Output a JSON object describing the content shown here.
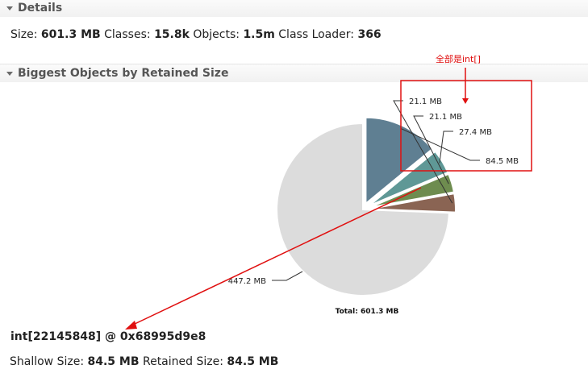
{
  "details": {
    "section_title": "Details",
    "size_label": "Size:",
    "size_value": "601.3 MB",
    "classes_label": "Classes:",
    "classes_value": "15.8k",
    "objects_label": "Objects:",
    "objects_value": "1.5m",
    "loader_label": "Class Loader:",
    "loader_value": "366"
  },
  "biggest": {
    "section_title": "Biggest Objects by Retained Size"
  },
  "chart_data": {
    "type": "pie",
    "title": "",
    "total_label": "Total: 601.3 MB",
    "slices": [
      {
        "label": "84.5 MB",
        "value": 84.5,
        "color": "#5f7f92",
        "exploded": true
      },
      {
        "label": "27.4 MB",
        "value": 27.4,
        "color": "#5f9896",
        "exploded": true
      },
      {
        "label": "21.1 MB",
        "value": 21.1,
        "color": "#6e8c4f",
        "exploded": true
      },
      {
        "label": "21.1 MB",
        "value": 21.1,
        "color": "#8a6453",
        "exploded": true
      },
      {
        "label": "447.2 MB",
        "value": 447.2,
        "color": "#dcdcdc",
        "exploded": false
      }
    ]
  },
  "annotation": {
    "text": "全部是int[]",
    "color": "#e01010"
  },
  "selected_object": {
    "title": "int[22145848] @ 0x68995d9e8",
    "shallow_label": "Shallow Size:",
    "shallow_value": "84.5 MB",
    "retained_label": "Retained Size:",
    "retained_value": "84.5 MB"
  }
}
